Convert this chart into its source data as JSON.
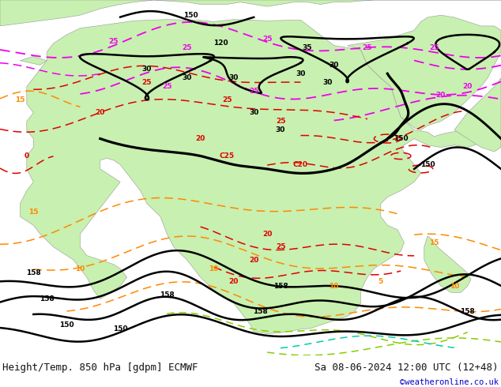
{
  "title_left": "Height/Temp. 850 hPa [gdpm] ECMWF",
  "title_right": "Sa 08-06-2024 12:00 UTC (12+48)",
  "copyright": "©weatheronline.co.uk",
  "fig_width": 6.34,
  "fig_height": 4.9,
  "dpi": 100,
  "text_color": "#111111",
  "copyright_color": "#0000cc",
  "font_size_title": 9.0,
  "font_size_copy": 7.5,
  "sea_color": "#d8d8d8",
  "land_color": "#c8f0b0",
  "border_color": "#999999",
  "black": "#000000",
  "red": "#dd0000",
  "magenta": "#ee00ee",
  "orange": "#ff8800",
  "green": "#88cc00",
  "cyan": "#00ccaa",
  "bottom_color": "#f0f0f0"
}
